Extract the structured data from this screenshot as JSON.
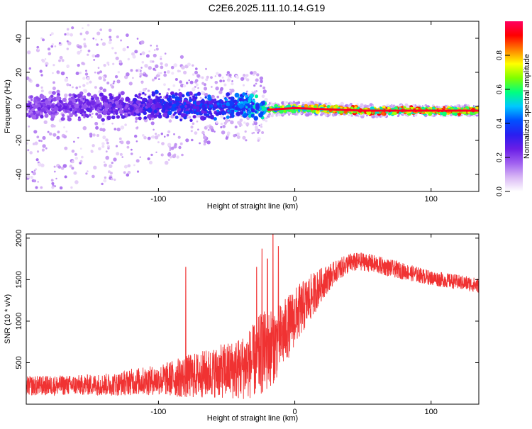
{
  "figure": {
    "title": "C2E6.2025.111.10.14.G19"
  },
  "colors": {
    "snr_line": "#f03232",
    "axis": "#000000",
    "background": "#ffffff"
  },
  "chart_data": [
    {
      "type": "heatmap",
      "xlabel": "Height of straight line (km)",
      "ylabel": "Frequency (Hz)",
      "xlim": [
        -197,
        135
      ],
      "ylim": [
        -50,
        50
      ],
      "x_ticks": [
        -100,
        0,
        100
      ],
      "x_tick_labels": [
        "-100",
        "0",
        "100"
      ],
      "y_ticks": [
        -40,
        -20,
        0,
        20,
        40
      ],
      "y_tick_labels": [
        "-40",
        "-20",
        "0",
        "20",
        "40"
      ],
      "colorbar": {
        "label": "Normalized spectral amplitude",
        "range": [
          0,
          1
        ],
        "ticks": [
          0,
          0.2,
          0.4,
          0.6,
          0.8
        ],
        "tick_labels": [
          "0.0",
          "0.2",
          "0.4",
          "0.6",
          "0.8"
        ],
        "colormap": [
          "#ffffff",
          "#d9b8f5",
          "#a060f0",
          "#6a1ee6",
          "#2a1ef0",
          "#0050ff",
          "#00c8ff",
          "#00ff80",
          "#80ff00",
          "#ffff00",
          "#ff8000",
          "#ff0000",
          "#ff0060"
        ]
      },
      "ridge": {
        "x": [
          -197,
          -150,
          -100,
          -50,
          -30,
          -20,
          0,
          50,
          100,
          135
        ],
        "freq_hz": [
          0,
          0,
          0,
          0,
          0,
          -2,
          -1,
          -2.5,
          -2.5,
          -2.5
        ]
      },
      "ridge_amplitude": [
        {
          "x": -197,
          "amplitude": 0.25
        },
        {
          "x": -120,
          "amplitude": 0.3
        },
        {
          "x": -100,
          "amplitude": 0.4
        },
        {
          "x": -60,
          "amplitude": 0.45
        },
        {
          "x": -30,
          "amplitude": 0.55
        },
        {
          "x": -20,
          "amplitude": 0.7
        },
        {
          "x": 0,
          "amplitude": 0.8
        },
        {
          "x": 50,
          "amplitude": 0.95
        },
        {
          "x": 135,
          "amplitude": 0.97
        }
      ],
      "scatter_spread_hz": [
        {
          "x": -197,
          "spread": 48
        },
        {
          "x": -150,
          "spread": 48
        },
        {
          "x": -110,
          "spread": 40
        },
        {
          "x": -60,
          "spread": 20
        },
        {
          "x": -25,
          "spread": 20
        },
        {
          "x": -20,
          "spread": 4
        },
        {
          "x": 135,
          "spread": 3
        }
      ]
    },
    {
      "type": "line",
      "xlabel": "Height of straight line (km)",
      "ylabel": "SNR (10 * v/v)",
      "xlim": [
        -197,
        135
      ],
      "ylim": [
        0,
        2050
      ],
      "x_ticks": [
        -100,
        0,
        100
      ],
      "x_tick_labels": [
        "-100",
        "0",
        "100"
      ],
      "y_ticks": [
        500,
        1000,
        1500,
        2000
      ],
      "y_tick_labels": [
        "500",
        "1000",
        "1500",
        "2000"
      ],
      "series": [
        {
          "x": [
            -197,
            -160,
            -130,
            -120,
            -100,
            -80,
            -60,
            -40,
            -30,
            -25,
            -20,
            -10,
            0,
            10,
            20,
            30,
            40,
            50,
            60,
            80,
            100,
            120,
            135
          ],
          "mean": [
            220,
            230,
            240,
            270,
            290,
            330,
            380,
            430,
            520,
            600,
            650,
            800,
            1050,
            1250,
            1450,
            1600,
            1700,
            1720,
            1680,
            1600,
            1520,
            1470,
            1430
          ],
          "noise_amplitude": [
            120,
            120,
            140,
            160,
            180,
            260,
            300,
            380,
            450,
            500,
            500,
            420,
            350,
            300,
            200,
            130,
            120,
            110,
            110,
            100,
            90,
            90,
            90
          ]
        }
      ],
      "spikes": [
        {
          "x": -80,
          "y": 1650
        },
        {
          "x": -28,
          "y": 1650
        },
        {
          "x": -24,
          "y": 1870
        },
        {
          "x": -20,
          "y": 1750
        },
        {
          "x": -16,
          "y": 2050
        },
        {
          "x": -12,
          "y": 1900
        }
      ]
    }
  ]
}
